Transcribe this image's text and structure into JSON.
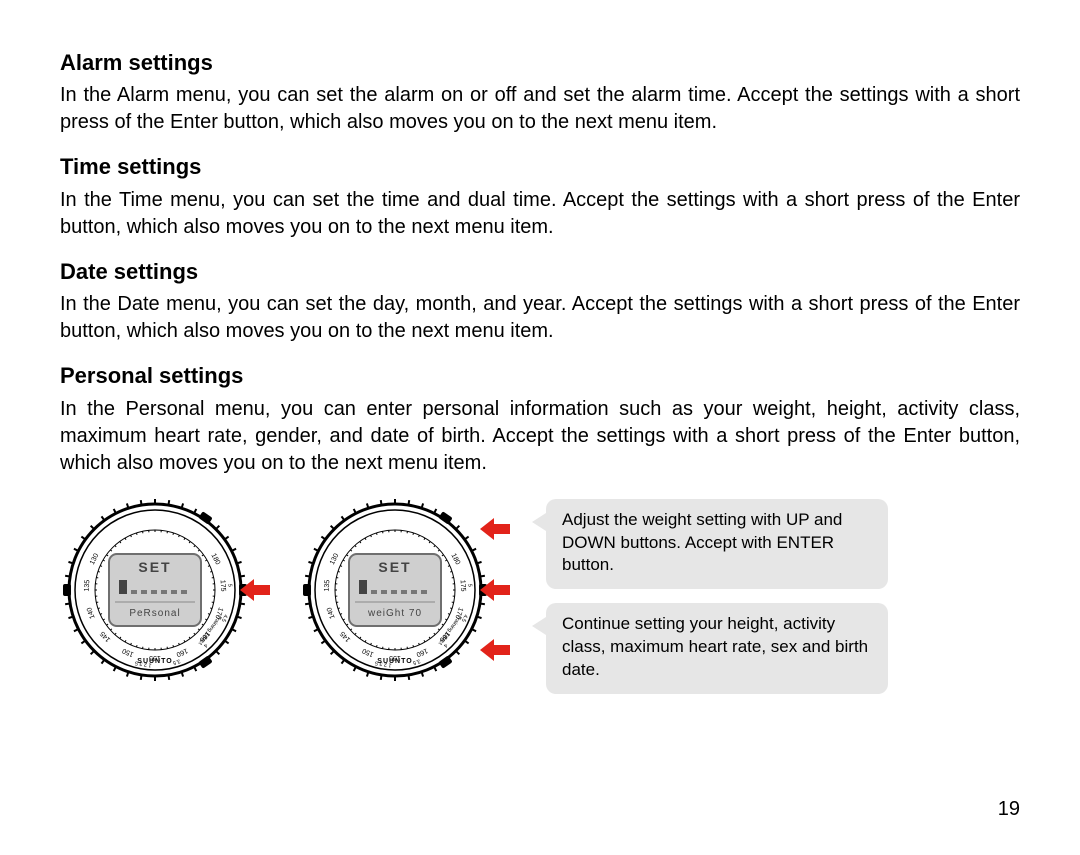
{
  "colors": {
    "background": "#ffffff",
    "text": "#000000",
    "arrow": "#e2231a",
    "callout_bg": "#e6e6e6",
    "watch_screen": "#cfcfcf",
    "watch_outline": "#000000",
    "watch_screen_border": "#6f6f6f"
  },
  "typography": {
    "heading_fontsize": 22,
    "body_fontsize": 20,
    "callout_fontsize": 17,
    "page_num_fontsize": 20,
    "body_align": "justify"
  },
  "page_number": "19",
  "sections": [
    {
      "heading": "Alarm settings",
      "body": "In the Alarm menu, you can set the alarm on or off and set the alarm time. Accept the settings with a short press of the Enter button, which also moves you on to the next menu item."
    },
    {
      "heading": "Time settings",
      "body": "In the Time menu, you can set the time and dual time. Accept the settings with a short press of the Enter button, which also moves you on to the next menu item."
    },
    {
      "heading": "Date settings",
      "body": "In the Date menu, you can set the day, month, and year. Accept the settings with a short press of the Enter button, which also moves you on to the next menu item."
    },
    {
      "heading": "Personal settings",
      "body": "In the Personal menu, you can enter personal information such as your weight, height, activity class, maximum heart rate, gender, and date of birth. Accept the settings with a short press of the Enter button, which also moves you on to the next menu item."
    }
  ],
  "figure": {
    "watches": [
      {
        "top_label": "SET",
        "bottom_label": "PeRsonal",
        "brand": "SUUNTO",
        "dial_numbers": [
          "130",
          "135",
          "140",
          "145",
          "150",
          "155",
          "160",
          "165",
          "170",
          "175",
          "180"
        ],
        "side_scale": [
          "5",
          "4.5",
          "4",
          "3.5",
          "1 2 3.5"
        ],
        "side_text": "Training Effect",
        "arrows": [
          {
            "side": "right",
            "y_percent": 50
          }
        ]
      },
      {
        "top_label": "SET",
        "bottom_label": "weiGht  70",
        "brand": "SUUNTO",
        "dial_numbers": [
          "130",
          "135",
          "140",
          "145",
          "150",
          "155",
          "160",
          "165",
          "170",
          "175",
          "180"
        ],
        "side_scale": [
          "5",
          "4.5",
          "4",
          "3.5",
          "1 2 3.5"
        ],
        "side_text": "Training Effect",
        "arrows": [
          {
            "side": "right",
            "y_percent": 18
          },
          {
            "side": "right",
            "y_percent": 50
          },
          {
            "side": "right",
            "y_percent": 82
          }
        ]
      }
    ],
    "callouts": [
      "Adjust the weight setting with UP and DOWN buttons. Accept with ENTER button.",
      "Continue setting your height, activity class, maximum heart rate, sex and birth date."
    ]
  }
}
